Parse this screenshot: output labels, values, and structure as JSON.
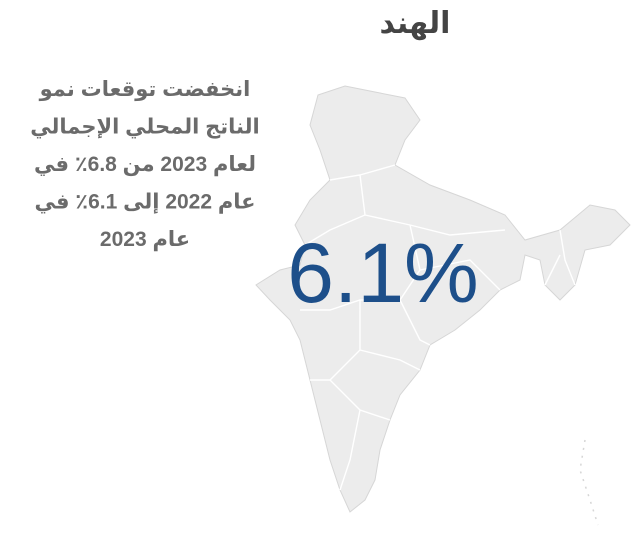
{
  "title": "الهند",
  "description": [
    "انخفضت توقعات نمو",
    "الناتج المحلي الإجمالي",
    "لعام 2023 من 6.8٪ في",
    "عام 2022 إلى 6.1٪ في",
    "عام 2023"
  ],
  "highlight": "6.1%"
}
